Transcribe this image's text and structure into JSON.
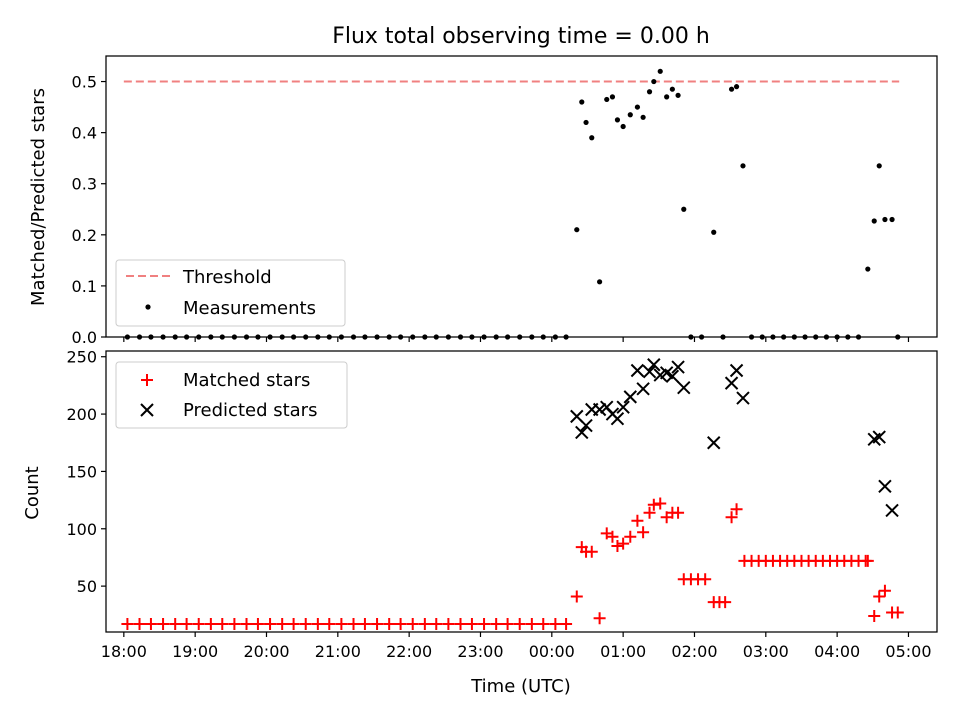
{
  "chart_data": [
    {
      "type": "scatter",
      "title": "Flux total observing time = 0.00 h",
      "xlabel": "",
      "ylabel": "Matched/Predicted stars",
      "xlim": [
        -6.0,
        5.65
      ],
      "ylim": [
        0.0,
        0.55
      ],
      "yticks": [
        0.0,
        0.1,
        0.2,
        0.3,
        0.4,
        0.5
      ],
      "ytick_labels": [
        "0.0",
        "0.1",
        "0.2",
        "0.3",
        "0.4",
        "0.5"
      ],
      "legend": {
        "position": "lower-left"
      },
      "threshold": {
        "name": "Threshold",
        "value": 0.5,
        "x_range": [
          -5.75,
          5.12
        ],
        "color": "#f08080",
        "style": "dashed"
      },
      "series": [
        {
          "name": "Measurements",
          "marker": "dot",
          "color": "#000000",
          "x": [
            -5.7,
            -5.53,
            -5.37,
            -5.2,
            -5.03,
            -4.87,
            -4.7,
            -4.53,
            -4.37,
            -4.2,
            -4.03,
            -3.87,
            -3.7,
            -3.53,
            -3.37,
            -3.2,
            -3.03,
            -2.87,
            -2.7,
            -2.53,
            -2.37,
            -2.2,
            -2.03,
            -1.87,
            -1.7,
            -1.53,
            -1.37,
            -1.2,
            -1.03,
            -0.87,
            -0.7,
            -0.53,
            -0.37,
            -0.2,
            -0.03,
            0.13,
            0.3,
            0.45,
            0.6,
            0.67,
            0.73,
            0.81,
            0.92,
            1.02,
            1.1,
            1.17,
            1.25,
            1.35,
            1.45,
            1.53,
            1.62,
            1.68,
            1.77,
            1.86,
            1.94,
            2.02,
            2.1,
            2.2,
            2.35,
            2.52,
            2.65,
            2.77,
            2.84,
            2.93,
            3.05,
            3.2,
            3.35,
            3.5,
            3.65,
            3.8,
            3.95,
            4.1,
            4.25,
            4.4,
            4.55,
            4.68,
            4.77,
            4.84,
            4.92,
            5.02,
            5.1
          ],
          "y": [
            0,
            0,
            0,
            0,
            0,
            0,
            0,
            0,
            0,
            0,
            0,
            0,
            0,
            0,
            0,
            0,
            0,
            0,
            0,
            0,
            0,
            0,
            0,
            0,
            0,
            0,
            0,
            0,
            0,
            0,
            0,
            0,
            0,
            0,
            0,
            0,
            0,
            0,
            0.21,
            0.46,
            0.42,
            0.39,
            0.108,
            0.465,
            0.47,
            0.425,
            0.412,
            0.435,
            0.45,
            0.43,
            0.48,
            0.5,
            0.52,
            0.47,
            0.485,
            0.473,
            0.25,
            0,
            0,
            0.205,
            0,
            0.485,
            0.49,
            0.335,
            0,
            0,
            0,
            0,
            0,
            0,
            0,
            0,
            0,
            0,
            0,
            0.133,
            0.227,
            0.335,
            0.23,
            0.23,
            0
          ]
        }
      ]
    },
    {
      "type": "scatter",
      "title": "",
      "xlabel": "Time (UTC)",
      "ylabel": "Count",
      "xlim": [
        -6.0,
        5.65
      ],
      "ylim": [
        10,
        255
      ],
      "yticks": [
        50,
        100,
        150,
        200,
        250
      ],
      "ytick_labels": [
        "50",
        "100",
        "150",
        "200",
        "250"
      ],
      "xticks": [
        -5.75,
        -4.75,
        -3.75,
        -2.75,
        -1.75,
        -0.75,
        0.25,
        1.25,
        2.25,
        3.25,
        4.25,
        5.25
      ],
      "xtick_labels": [
        "18:00",
        "19:00",
        "20:00",
        "21:00",
        "22:00",
        "23:00",
        "00:00",
        "01:00",
        "02:00",
        "03:00",
        "04:00",
        "05:00"
      ],
      "legend": {
        "position": "top-left"
      },
      "series": [
        {
          "name": "Matched stars",
          "marker": "plus",
          "color": "#ff0000",
          "x": [
            -5.7,
            -5.53,
            -5.37,
            -5.2,
            -5.03,
            -4.87,
            -4.7,
            -4.53,
            -4.37,
            -4.2,
            -4.03,
            -3.87,
            -3.7,
            -3.53,
            -3.37,
            -3.2,
            -3.03,
            -2.87,
            -2.7,
            -2.53,
            -2.37,
            -2.2,
            -2.03,
            -1.87,
            -1.7,
            -1.53,
            -1.37,
            -1.2,
            -1.03,
            -0.87,
            -0.7,
            -0.53,
            -0.37,
            -0.2,
            -0.03,
            0.13,
            0.3,
            0.45,
            0.6,
            0.67,
            0.73,
            0.81,
            0.92,
            1.02,
            1.1,
            1.17,
            1.25,
            1.35,
            1.45,
            1.53,
            1.62,
            1.68,
            1.77,
            1.86,
            1.94,
            2.02,
            2.1,
            2.2,
            2.3,
            2.4,
            2.52,
            2.6,
            2.68,
            2.77,
            2.84,
            2.95,
            3.05,
            3.15,
            3.25,
            3.35,
            3.45,
            3.55,
            3.65,
            3.75,
            3.85,
            3.95,
            4.05,
            4.15,
            4.25,
            4.35,
            4.45,
            4.55,
            4.65,
            4.68,
            4.77,
            4.84,
            4.92,
            5.02,
            5.1
          ],
          "y": [
            17,
            17,
            17,
            17,
            17,
            17,
            17,
            17,
            17,
            17,
            17,
            17,
            17,
            17,
            17,
            17,
            17,
            17,
            17,
            17,
            17,
            17,
            17,
            17,
            17,
            17,
            17,
            17,
            17,
            17,
            17,
            17,
            17,
            17,
            17,
            17,
            17,
            17,
            41,
            84,
            80,
            80,
            22,
            96,
            93,
            85,
            87,
            93,
            107,
            97,
            114,
            121,
            122,
            110,
            114,
            114,
            56,
            56,
            56,
            56,
            36,
            36,
            36,
            110,
            117,
            72,
            72,
            72,
            72,
            72,
            72,
            72,
            72,
            72,
            72,
            72,
            72,
            72,
            72,
            72,
            72,
            72,
            72,
            72,
            24,
            41,
            46,
            27,
            27
          ]
        },
        {
          "name": "Predicted stars",
          "marker": "x",
          "color": "#000000",
          "x": [
            0.6,
            0.67,
            0.73,
            0.81,
            0.92,
            1.02,
            1.1,
            1.17,
            1.25,
            1.35,
            1.45,
            1.53,
            1.62,
            1.68,
            1.77,
            1.86,
            1.94,
            2.02,
            2.1,
            2.52,
            2.77,
            2.84,
            2.93,
            4.77,
            4.84,
            4.92,
            5.02
          ],
          "y": [
            198,
            184,
            190,
            204,
            204,
            206,
            200,
            196,
            206,
            215,
            238,
            222,
            237,
            243,
            234,
            236,
            233,
            241,
            223,
            175,
            227,
            238,
            214,
            178,
            180,
            137,
            116
          ]
        }
      ]
    }
  ]
}
